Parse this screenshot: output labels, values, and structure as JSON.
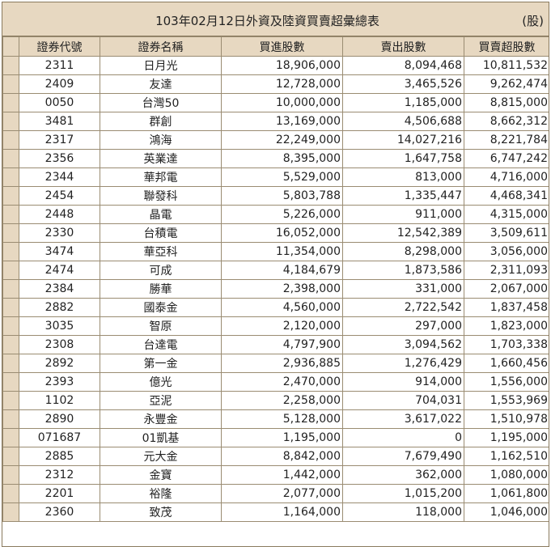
{
  "report": {
    "title": "103年02月12日外資及陸資買賣超彙總表",
    "unit": "(股)"
  },
  "columns": [
    "證券代號",
    "證券名稱",
    "買進股數",
    "賣出股數",
    "買賣超股數"
  ],
  "rows": [
    {
      "code": "2311",
      "name": "日月光",
      "buy": "18,906,000",
      "sell": "8,094,468",
      "net": "10,811,532"
    },
    {
      "code": "2409",
      "name": "友達",
      "buy": "12,728,000",
      "sell": "3,465,526",
      "net": "9,262,474"
    },
    {
      "code": "0050",
      "name": "台灣50",
      "buy": "10,000,000",
      "sell": "1,185,000",
      "net": "8,815,000"
    },
    {
      "code": "3481",
      "name": "群創",
      "buy": "13,169,000",
      "sell": "4,506,688",
      "net": "8,662,312"
    },
    {
      "code": "2317",
      "name": "鴻海",
      "buy": "22,249,000",
      "sell": "14,027,216",
      "net": "8,221,784"
    },
    {
      "code": "2356",
      "name": "英業達",
      "buy": "8,395,000",
      "sell": "1,647,758",
      "net": "6,747,242"
    },
    {
      "code": "2344",
      "name": "華邦電",
      "buy": "5,529,000",
      "sell": "813,000",
      "net": "4,716,000"
    },
    {
      "code": "2454",
      "name": "聯發科",
      "buy": "5,803,788",
      "sell": "1,335,447",
      "net": "4,468,341"
    },
    {
      "code": "2448",
      "name": "晶電",
      "buy": "5,226,000",
      "sell": "911,000",
      "net": "4,315,000"
    },
    {
      "code": "2330",
      "name": "台積電",
      "buy": "16,052,000",
      "sell": "12,542,389",
      "net": "3,509,611"
    },
    {
      "code": "3474",
      "name": "華亞科",
      "buy": "11,354,000",
      "sell": "8,298,000",
      "net": "3,056,000"
    },
    {
      "code": "2474",
      "name": "可成",
      "buy": "4,184,679",
      "sell": "1,873,586",
      "net": "2,311,093"
    },
    {
      "code": "2384",
      "name": "勝華",
      "buy": "2,398,000",
      "sell": "331,000",
      "net": "2,067,000"
    },
    {
      "code": "2882",
      "name": "國泰金",
      "buy": "4,560,000",
      "sell": "2,722,542",
      "net": "1,837,458"
    },
    {
      "code": "3035",
      "name": "智原",
      "buy": "2,120,000",
      "sell": "297,000",
      "net": "1,823,000"
    },
    {
      "code": "2308",
      "name": "台達電",
      "buy": "4,797,900",
      "sell": "3,094,562",
      "net": "1,703,338"
    },
    {
      "code": "2892",
      "name": "第一金",
      "buy": "2,936,885",
      "sell": "1,276,429",
      "net": "1,660,456"
    },
    {
      "code": "2393",
      "name": "億光",
      "buy": "2,470,000",
      "sell": "914,000",
      "net": "1,556,000"
    },
    {
      "code": "1102",
      "name": "亞泥",
      "buy": "2,258,000",
      "sell": "704,031",
      "net": "1,553,969"
    },
    {
      "code": "2890",
      "name": "永豐金",
      "buy": "5,128,000",
      "sell": "3,617,022",
      "net": "1,510,978"
    },
    {
      "code": "071687",
      "name": "01凱基",
      "buy": "1,195,000",
      "sell": "0",
      "net": "1,195,000"
    },
    {
      "code": "2885",
      "name": "元大金",
      "buy": "8,842,000",
      "sell": "7,679,490",
      "net": "1,162,510"
    },
    {
      "code": "2312",
      "name": "金寶",
      "buy": "1,442,000",
      "sell": "362,000",
      "net": "1,080,000"
    },
    {
      "code": "2201",
      "name": "裕隆",
      "buy": "2,077,000",
      "sell": "1,015,200",
      "net": "1,061,800"
    },
    {
      "code": "2360",
      "name": "致茂",
      "buy": "1,164,000",
      "sell": "118,000",
      "net": "1,046,000"
    }
  ]
}
